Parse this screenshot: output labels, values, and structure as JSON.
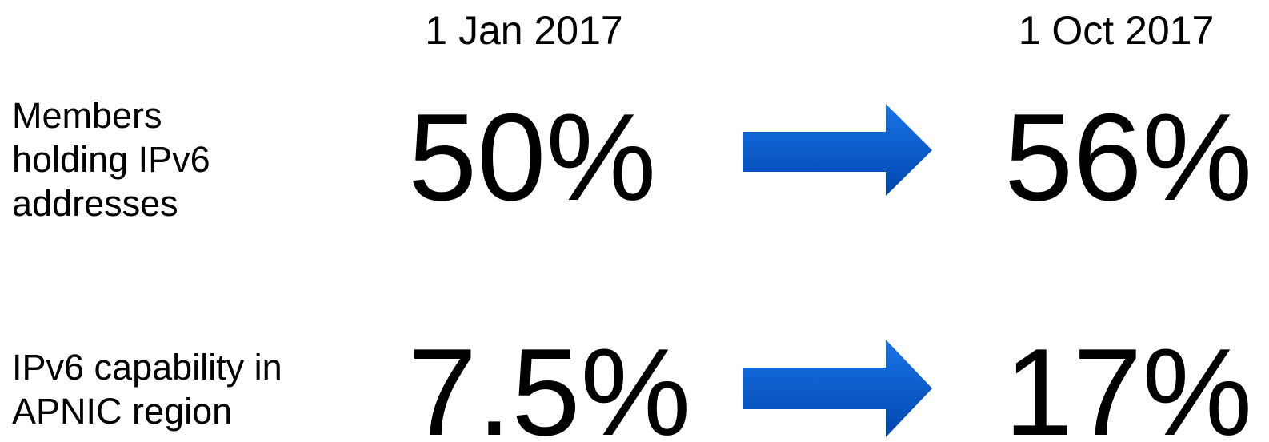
{
  "columns": [
    "1 Jan 2017",
    "1 Oct 2017"
  ],
  "rows": [
    {
      "label": [
        "Members",
        "holding IPv6",
        "addresses"
      ],
      "values": [
        "50%",
        "56%"
      ]
    },
    {
      "label": [
        "IPv6 capability in",
        "APNIC region"
      ],
      "values": [
        "7.5%",
        "17%"
      ]
    }
  ]
}
